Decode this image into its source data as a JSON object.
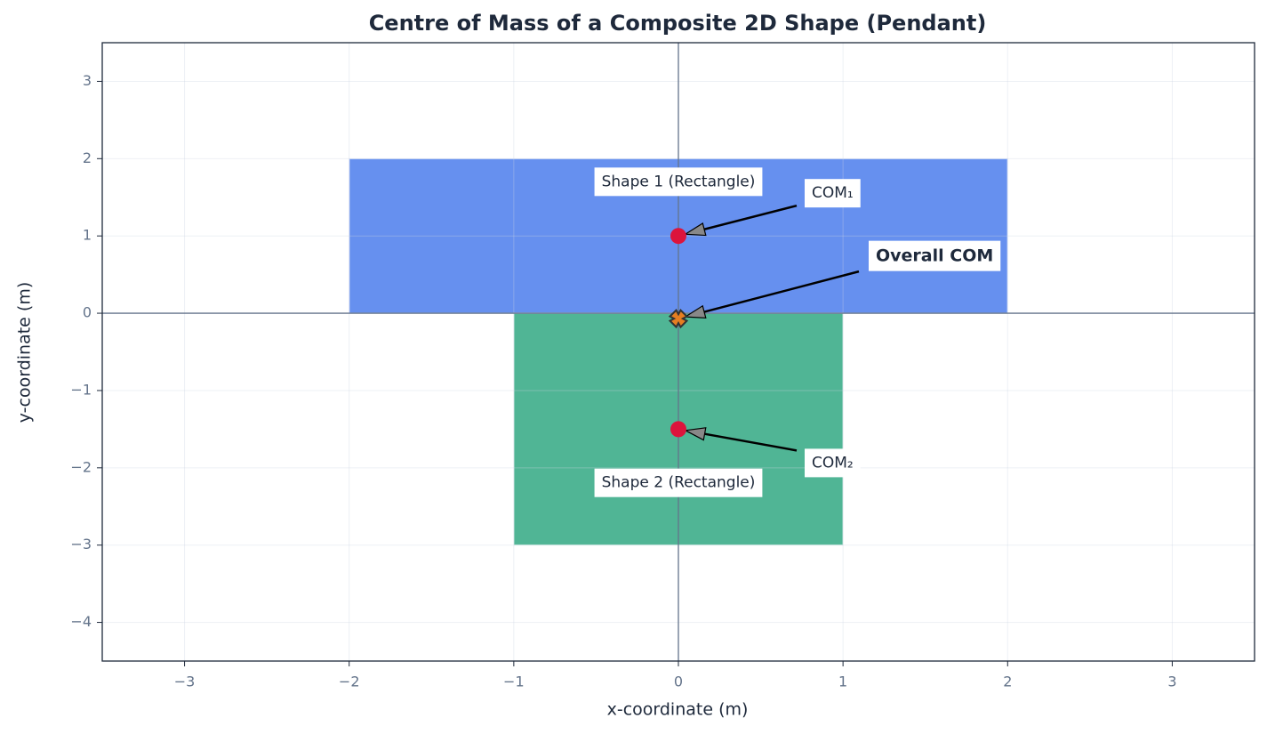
{
  "chart_data": {
    "type": "scatter",
    "title": "Centre of Mass of a Composite 2D Shape (Pendant)",
    "xlabel": "x-coordinate (m)",
    "ylabel": "y-coordinate (m)",
    "xlim": [
      -3.5,
      3.5
    ],
    "ylim": [
      -4.5,
      3.5
    ],
    "xticks": [
      {
        "value": -3,
        "label": "−3"
      },
      {
        "value": -2,
        "label": "−2"
      },
      {
        "value": -1,
        "label": "−1"
      },
      0,
      1,
      2,
      3
    ],
    "yticks": [
      {
        "value": -4,
        "label": "−4"
      },
      {
        "value": -3,
        "label": "−3"
      },
      {
        "value": -2,
        "label": "−2"
      },
      {
        "value": -1,
        "label": "−1"
      },
      0,
      1,
      2,
      3
    ],
    "grid": true,
    "shapes": [
      {
        "name": "Shape 1 (Rectangle)",
        "color": "#6690ef",
        "x": [
          -2,
          2
        ],
        "y": [
          0,
          2
        ]
      },
      {
        "name": "Shape 2 (Rectangle)",
        "color": "#50b595",
        "x": [
          -1,
          1
        ],
        "y": [
          -3,
          0
        ]
      }
    ],
    "points": [
      {
        "name": "COM₁",
        "color": "#dc143c",
        "x": 0,
        "y": 1
      },
      {
        "name": "COM₂",
        "color": "#dc143c",
        "x": 0,
        "y": -1.5
      },
      {
        "name": "Overall COM",
        "color": "#e67e22",
        "x": 0,
        "y": -0.07
      }
    ]
  }
}
